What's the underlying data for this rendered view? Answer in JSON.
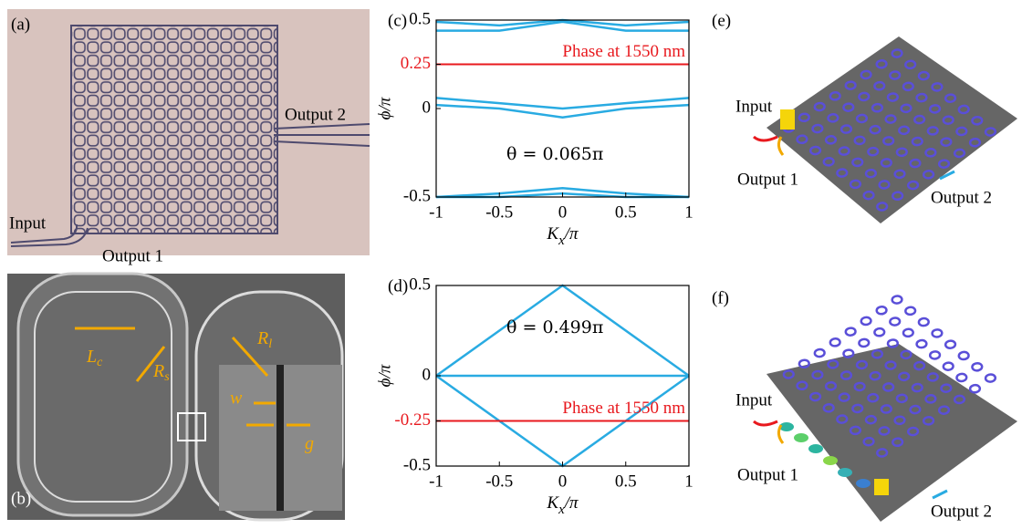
{
  "panels": {
    "a": {
      "label": "(a)",
      "output2": "Output 2",
      "input": "Input",
      "output1": "Output 1"
    },
    "b": {
      "label": "(b)",
      "lc": {
        "main": "L",
        "sub": "c"
      },
      "rs": {
        "main": "R",
        "sub": "s"
      },
      "rl": {
        "main": "R",
        "sub": "l"
      },
      "w": "w",
      "g": "g"
    },
    "e": {
      "label": "(e)",
      "input": "Input",
      "output1": "Output 1",
      "output2": "Output 2"
    },
    "f": {
      "label": "(f)",
      "input": "Input",
      "output1": "Output 1",
      "output2": "Output 2"
    }
  },
  "chart_data": [
    {
      "type": "line",
      "panel": "(c)",
      "ylabel": "ϕ/π",
      "xlabel": [
        "K",
        "x",
        "/π"
      ],
      "x": [
        -1,
        -0.5,
        0,
        0.5,
        1
      ],
      "series": [
        {
          "color": "#29abe2",
          "values": [
            0.49,
            0.47,
            0.5,
            0.47,
            0.49
          ]
        },
        {
          "color": "#29abe2",
          "values": [
            0.44,
            0.44,
            0.49,
            0.44,
            0.44
          ]
        },
        {
          "color": "#29abe2",
          "values": [
            0.06,
            0.03,
            0.0,
            0.03,
            0.06
          ]
        },
        {
          "color": "#29abe2",
          "values": [
            0.02,
            0.0,
            -0.05,
            0.0,
            0.02
          ]
        },
        {
          "color": "#29abe2",
          "values": [
            -0.5,
            -0.48,
            -0.45,
            -0.48,
            -0.5
          ]
        },
        {
          "color": "#29abe2",
          "values": [
            -0.5,
            -0.5,
            -0.48,
            -0.5,
            -0.5
          ]
        }
      ],
      "phase_line": {
        "value": 0.25,
        "label": "Phase at 1550 nm",
        "color": "#e8191e"
      },
      "annotation": "θ = 0.065π",
      "xlim": [
        -1,
        1
      ],
      "ylim": [
        -0.5,
        0.5
      ],
      "xticks": [
        -1,
        -0.5,
        0,
        0.5,
        1
      ],
      "yticks": [
        -0.5,
        0,
        0.25,
        0.5
      ]
    },
    {
      "type": "line",
      "panel": "(d)",
      "ylabel": "ϕ/π",
      "xlabel": [
        "K",
        "x",
        "/π"
      ],
      "x": [
        -1,
        0,
        1
      ],
      "series": [
        {
          "color": "#29abe2",
          "values": [
            0,
            0.5,
            0
          ]
        },
        {
          "color": "#29abe2",
          "values": [
            0,
            -0.5,
            0
          ]
        },
        {
          "color": "#29abe2",
          "values": [
            0,
            0,
            0
          ]
        }
      ],
      "phase_line": {
        "value": -0.25,
        "label": "Phase at 1550 nm",
        "color": "#e8191e"
      },
      "annotation": "θ = 0.499π",
      "xlim": [
        -1,
        1
      ],
      "ylim": [
        -0.5,
        0.5
      ],
      "xticks": [
        -1,
        -0.5,
        0,
        0.5,
        1
      ],
      "yticks": [
        -0.5,
        -0.25,
        0,
        0.5
      ]
    }
  ]
}
